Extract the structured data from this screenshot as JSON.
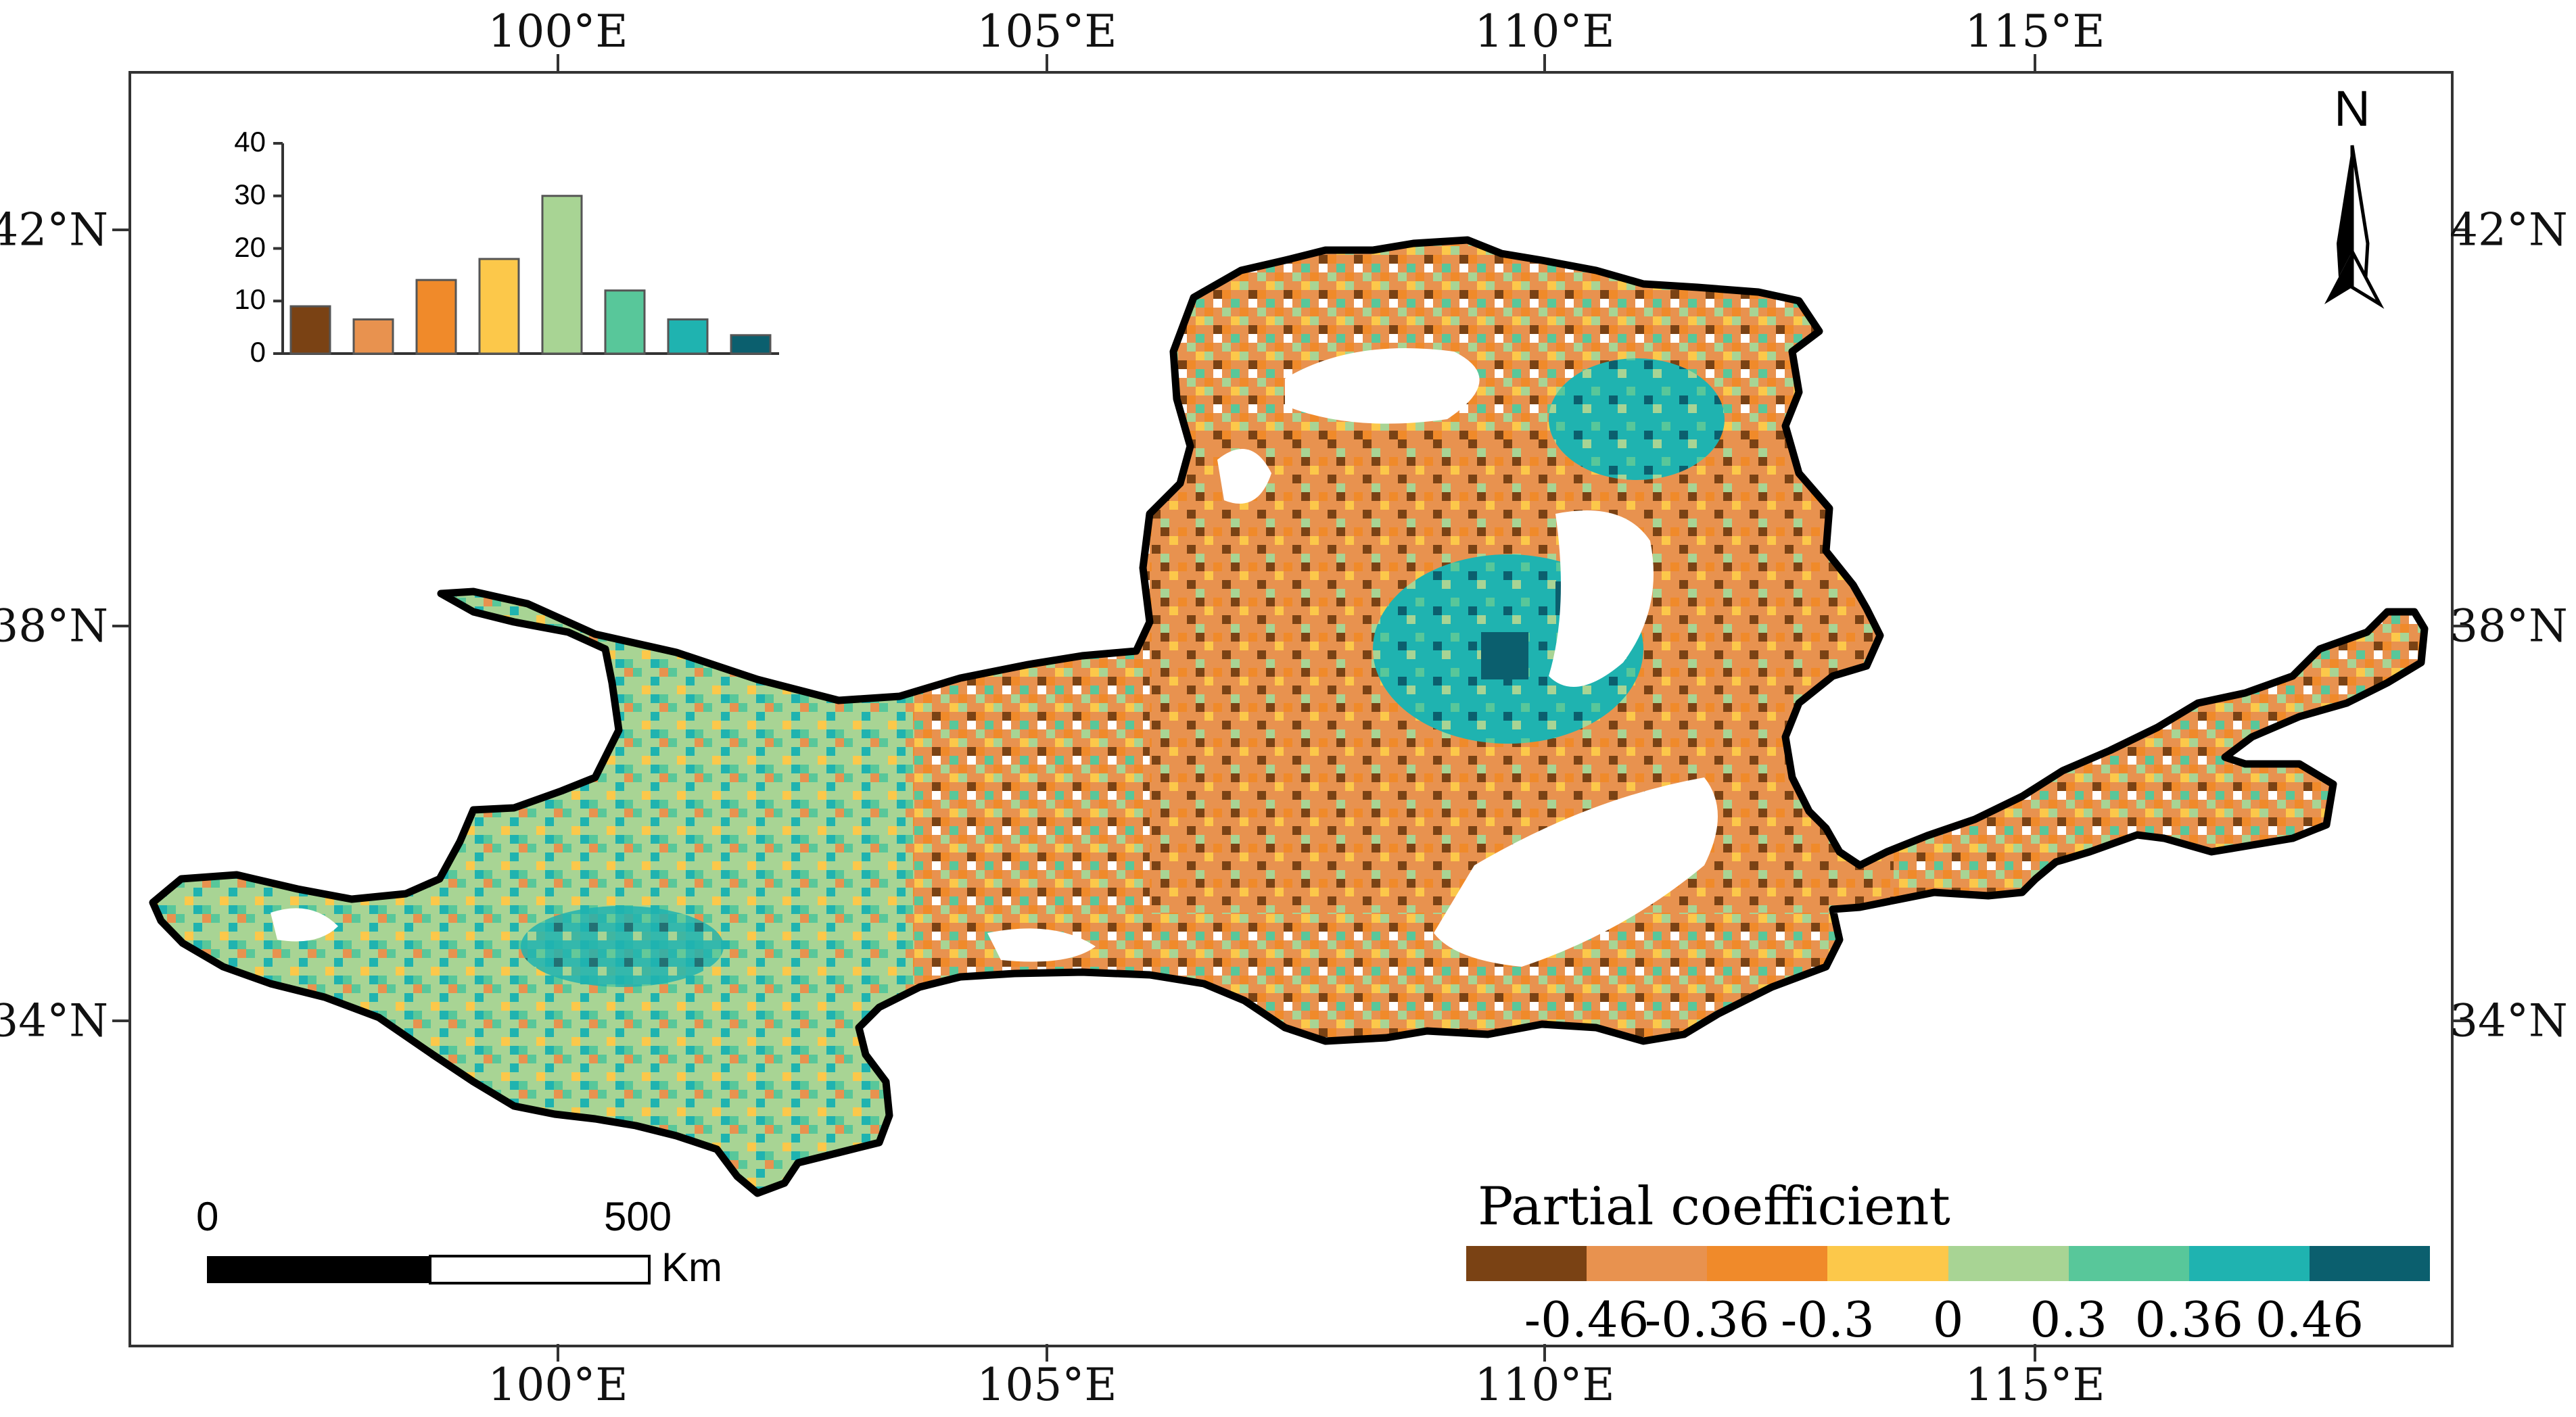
{
  "map": {
    "lon_labels": [
      "100°E",
      "105°E",
      "110°E",
      "115°E"
    ],
    "lat_labels": [
      "42°N",
      "38°N",
      "34°N"
    ],
    "north_label": "N"
  },
  "inset_histogram": {
    "yticks": [
      "40",
      "30",
      "20",
      "10",
      "0"
    ],
    "values": [
      9,
      6.5,
      14,
      18,
      30,
      12,
      6.5,
      3.5
    ],
    "colors": [
      "#7a4214",
      "#e8924f",
      "#f08a2a",
      "#fcc84a",
      "#a8d494",
      "#58c79a",
      "#1fb3b0",
      "#0b5f6e"
    ]
  },
  "scale_bar": {
    "start_label": "0",
    "end_label": "500",
    "unit": "Km"
  },
  "legend": {
    "title": "Partial coefficient",
    "labels": [
      "-0.46",
      "-0.36",
      "-0.3",
      "0",
      "0.3",
      "0.36",
      "0.46"
    ],
    "colors": [
      "#7a4214",
      "#e8924f",
      "#f08a2a",
      "#fcc84a",
      "#a8d494",
      "#58c79a",
      "#1fb3b0",
      "#0b5f6e"
    ]
  }
}
